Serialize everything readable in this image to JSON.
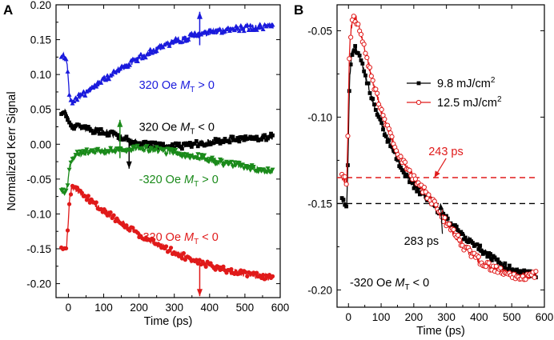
{
  "chart_data": [
    {
      "panel": "A",
      "type": "line",
      "xlabel": "Time (ps)",
      "ylabel": "Normalized Kerr Signal",
      "xlim": [
        -35,
        600
      ],
      "ylim": [
        -0.22,
        0.2
      ],
      "xticks": [
        0,
        100,
        200,
        300,
        400,
        500,
        600
      ],
      "yticks": [
        -0.2,
        -0.15,
        -0.1,
        -0.05,
        0.0,
        0.05,
        0.1,
        0.15,
        0.2
      ],
      "ytick_labels": [
        "-0.20",
        "-0.15",
        "-0.10",
        "-0.05",
        "0.00",
        "0.05",
        "0.10",
        "0.15",
        "0.20"
      ],
      "series": [
        {
          "name": "320 Oe, MT > 0",
          "color": "#1a1adc",
          "marker": "triangle-up",
          "label_parts": [
            "320 Oe",
            "M",
            "T",
            " > 0"
          ],
          "points": [
            [
              -20,
              0.125
            ],
            [
              -12,
              0.128
            ],
            [
              -6,
              0.122
            ],
            [
              -2,
              0.105
            ],
            [
              2,
              0.075
            ],
            [
              8,
              0.062
            ],
            [
              15,
              0.062
            ],
            [
              25,
              0.066
            ],
            [
              50,
              0.075
            ],
            [
              75,
              0.083
            ],
            [
              100,
              0.092
            ],
            [
              125,
              0.1
            ],
            [
              150,
              0.108
            ],
            [
              175,
              0.117
            ],
            [
              200,
              0.124
            ],
            [
              225,
              0.13
            ],
            [
              250,
              0.137
            ],
            [
              275,
              0.142
            ],
            [
              300,
              0.147
            ],
            [
              325,
              0.151
            ],
            [
              350,
              0.155
            ],
            [
              375,
              0.158
            ],
            [
              400,
              0.16
            ],
            [
              425,
              0.162
            ],
            [
              450,
              0.164
            ],
            [
              475,
              0.166
            ],
            [
              500,
              0.167
            ],
            [
              525,
              0.168
            ],
            [
              550,
              0.169
            ],
            [
              580,
              0.17
            ]
          ],
          "arrow": {
            "x": 372,
            "from": 0.142,
            "to": 0.19,
            "direction": "up"
          }
        },
        {
          "name": "320 Oe, MT < 0",
          "color": "#000000",
          "marker": "square",
          "label_parts": [
            "320 Oe",
            "M",
            "T",
            " < 0"
          ],
          "points": [
            [
              -20,
              0.047
            ],
            [
              -12,
              0.046
            ],
            [
              -5,
              0.044
            ],
            [
              0,
              0.035
            ],
            [
              5,
              0.028
            ],
            [
              15,
              0.025
            ],
            [
              30,
              0.024
            ],
            [
              50,
              0.022
            ],
            [
              75,
              0.02
            ],
            [
              100,
              0.018
            ],
            [
              125,
              0.015
            ],
            [
              150,
              0.01
            ],
            [
              175,
              0.005
            ],
            [
              200,
              0.002
            ],
            [
              225,
              0.0
            ],
            [
              250,
              -0.002
            ],
            [
              275,
              -0.003
            ],
            [
              300,
              -0.003
            ],
            [
              325,
              -0.002
            ],
            [
              350,
              0.0
            ],
            [
              375,
              0.002
            ],
            [
              400,
              0.003
            ],
            [
              425,
              0.005
            ],
            [
              450,
              0.006
            ],
            [
              475,
              0.007
            ],
            [
              500,
              0.008
            ],
            [
              525,
              0.009
            ],
            [
              550,
              0.01
            ],
            [
              580,
              0.011
            ]
          ],
          "arrow": {
            "x": 172,
            "from": 0.005,
            "to": -0.035,
            "direction": "down"
          }
        },
        {
          "name": "-320 Oe, MT > 0",
          "color": "#1a8a1a",
          "marker": "triangle-down",
          "label_parts": [
            "-320 Oe",
            "M",
            "T",
            " > 0"
          ],
          "points": [
            [
              -20,
              -0.066
            ],
            [
              -12,
              -0.068
            ],
            [
              -5,
              -0.066
            ],
            [
              0,
              -0.05
            ],
            [
              5,
              -0.03
            ],
            [
              12,
              -0.02
            ],
            [
              25,
              -0.015
            ],
            [
              50,
              -0.012
            ],
            [
              75,
              -0.01
            ],
            [
              100,
              -0.009
            ],
            [
              125,
              -0.008
            ],
            [
              150,
              -0.007
            ],
            [
              175,
              -0.006
            ],
            [
              200,
              -0.006
            ],
            [
              225,
              -0.007
            ],
            [
              250,
              -0.008
            ],
            [
              275,
              -0.01
            ],
            [
              300,
              -0.012
            ],
            [
              325,
              -0.014
            ],
            [
              350,
              -0.017
            ],
            [
              375,
              -0.019
            ],
            [
              400,
              -0.022
            ],
            [
              425,
              -0.025
            ],
            [
              450,
              -0.028
            ],
            [
              475,
              -0.03
            ],
            [
              500,
              -0.032
            ],
            [
              525,
              -0.035
            ],
            [
              550,
              -0.037
            ],
            [
              580,
              -0.04
            ]
          ],
          "arrow": {
            "x": 146,
            "from": -0.02,
            "to": 0.035,
            "direction": "up"
          }
        },
        {
          "name": "-320 Oe, MT < 0",
          "color": "#e01a1a",
          "marker": "circle",
          "label_parts": [
            "-320 Oe",
            "M",
            "T",
            " < 0"
          ],
          "points": [
            [
              -20,
              -0.145
            ],
            [
              -12,
              -0.148
            ],
            [
              -6,
              -0.154
            ],
            [
              -2,
              -0.125
            ],
            [
              2,
              -0.085
            ],
            [
              8,
              -0.065
            ],
            [
              15,
              -0.062
            ],
            [
              25,
              -0.066
            ],
            [
              50,
              -0.076
            ],
            [
              75,
              -0.085
            ],
            [
              100,
              -0.095
            ],
            [
              125,
              -0.104
            ],
            [
              150,
              -0.113
            ],
            [
              175,
              -0.121
            ],
            [
              200,
              -0.129
            ],
            [
              225,
              -0.136
            ],
            [
              250,
              -0.143
            ],
            [
              275,
              -0.149
            ],
            [
              300,
              -0.155
            ],
            [
              325,
              -0.16
            ],
            [
              350,
              -0.165
            ],
            [
              375,
              -0.169
            ],
            [
              400,
              -0.173
            ],
            [
              425,
              -0.177
            ],
            [
              450,
              -0.181
            ],
            [
              475,
              -0.184
            ],
            [
              500,
              -0.186
            ],
            [
              525,
              -0.188
            ],
            [
              550,
              -0.19
            ],
            [
              580,
              -0.192
            ]
          ],
          "arrow": {
            "x": 372,
            "from": -0.168,
            "to": -0.218,
            "direction": "down"
          }
        }
      ]
    },
    {
      "panel": "B",
      "type": "line",
      "xlabel": "Time (ps)",
      "ylabel": "",
      "xlim": [
        -35,
        600
      ],
      "ylim": [
        -0.21,
        -0.035
      ],
      "xticks": [
        0,
        100,
        200,
        300,
        400,
        500,
        600
      ],
      "yticks": [
        -0.2,
        -0.15,
        -0.1,
        -0.05
      ],
      "ytick_labels": [
        "-0.20",
        "-0.15",
        "-0.10",
        "-0.05"
      ],
      "legend": [
        {
          "label": "9.8 mJ/cm",
          "sup": "2",
          "color": "#000000",
          "marker": "square"
        },
        {
          "label": "12.5 mJ/cm",
          "sup": "2",
          "color": "#e01a1a",
          "marker": "circle-open"
        }
      ],
      "series": [
        {
          "name": "9.8 mJ/cm2",
          "color": "#000000",
          "marker": "square",
          "points": [
            [
              -20,
              -0.148
            ],
            [
              -12,
              -0.149
            ],
            [
              -5,
              -0.152
            ],
            [
              -1,
              -0.12
            ],
            [
              3,
              -0.08
            ],
            [
              10,
              -0.063
            ],
            [
              18,
              -0.059
            ],
            [
              30,
              -0.062
            ],
            [
              50,
              -0.075
            ],
            [
              75,
              -0.091
            ],
            [
              100,
              -0.104
            ],
            [
              125,
              -0.115
            ],
            [
              150,
              -0.125
            ],
            [
              175,
              -0.133
            ],
            [
              200,
              -0.139
            ],
            [
              225,
              -0.144
            ],
            [
              250,
              -0.149
            ],
            [
              275,
              -0.154
            ],
            [
              300,
              -0.159
            ],
            [
              325,
              -0.164
            ],
            [
              350,
              -0.168
            ],
            [
              375,
              -0.172
            ],
            [
              400,
              -0.176
            ],
            [
              425,
              -0.18
            ],
            [
              450,
              -0.183
            ],
            [
              475,
              -0.186
            ],
            [
              500,
              -0.188
            ],
            [
              525,
              -0.19
            ],
            [
              550,
              -0.191
            ],
            [
              575,
              -0.192
            ]
          ]
        },
        {
          "name": "12.5 mJ/cm2",
          "color": "#e01a1a",
          "marker": "circle-open",
          "points": [
            [
              -20,
              -0.135
            ],
            [
              -12,
              -0.136
            ],
            [
              -5,
              -0.138
            ],
            [
              -1,
              -0.1
            ],
            [
              3,
              -0.06
            ],
            [
              10,
              -0.046
            ],
            [
              18,
              -0.043
            ],
            [
              30,
              -0.045
            ],
            [
              50,
              -0.06
            ],
            [
              75,
              -0.08
            ],
            [
              100,
              -0.096
            ],
            [
              125,
              -0.109
            ],
            [
              150,
              -0.12
            ],
            [
              175,
              -0.128
            ],
            [
              200,
              -0.135
            ],
            [
              225,
              -0.141
            ],
            [
              250,
              -0.147
            ],
            [
              275,
              -0.154
            ],
            [
              300,
              -0.161
            ],
            [
              325,
              -0.168
            ],
            [
              350,
              -0.174
            ],
            [
              375,
              -0.179
            ],
            [
              400,
              -0.183
            ],
            [
              425,
              -0.186
            ],
            [
              450,
              -0.188
            ],
            [
              475,
              -0.19
            ],
            [
              500,
              -0.191
            ],
            [
              525,
              -0.192
            ],
            [
              550,
              -0.192
            ],
            [
              575,
              -0.191
            ]
          ]
        }
      ],
      "hlines": [
        {
          "y": -0.135,
          "color": "#e01a1a",
          "style": "dashed"
        },
        {
          "y": -0.15,
          "color": "#000000",
          "style": "dashed"
        }
      ],
      "annotations": [
        {
          "text": "243 ps",
          "color": "#e01a1a",
          "x_point": 263,
          "y_point": -0.135,
          "x_text": 245,
          "y_text": -0.122
        },
        {
          "text": "283 ps",
          "color": "#000000",
          "x_point": 282,
          "y_point": -0.15,
          "x_text": 170,
          "y_text": -0.174
        }
      ],
      "condition_label": {
        "prefix": "-320 Oe",
        "m": "M",
        "sub": "T",
        "suffix": " < 0"
      }
    }
  ]
}
